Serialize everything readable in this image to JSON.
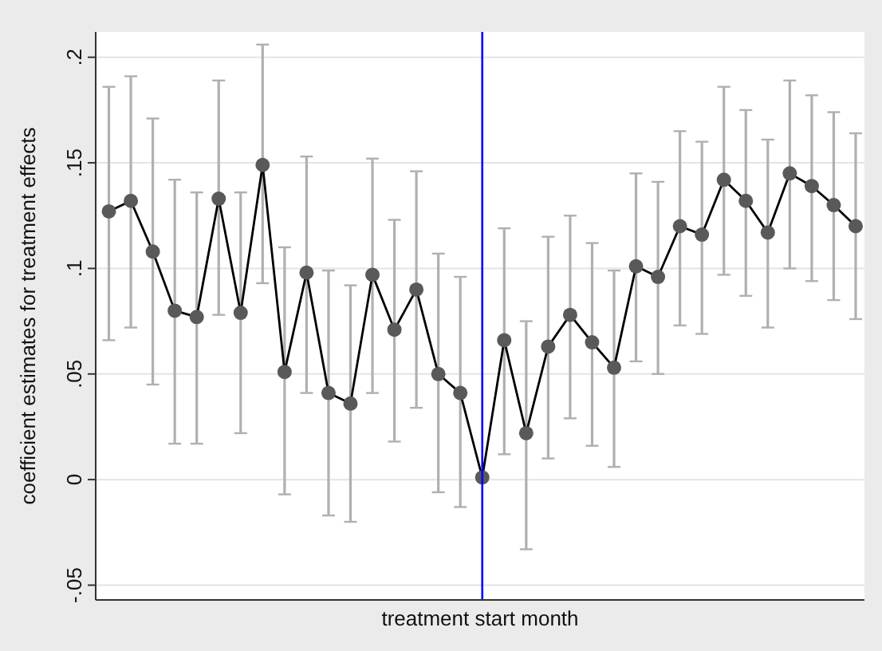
{
  "chart_data": {
    "type": "line",
    "xlabel": "treatment start month",
    "ylabel": "coefficient estimates for treatment effects",
    "categories": [
      null,
      null,
      null,
      null,
      null,
      null,
      null,
      null,
      null,
      null,
      null,
      null,
      null,
      null,
      null,
      null,
      null,
      null,
      null,
      null,
      null,
      null,
      null,
      null,
      null,
      null,
      null,
      null,
      null,
      null,
      null,
      null,
      null,
      null,
      null
    ],
    "tick_labels": "y",
    "ylim": [
      -0.057,
      0.212
    ],
    "yticks": [
      {
        "value": -0.05,
        "label": "-.05"
      },
      {
        "value": 0,
        "label": "0"
      },
      {
        "value": 0.05,
        "label": ".05"
      },
      {
        "value": 0.1,
        "label": ".1"
      },
      {
        "value": 0.15,
        "label": ".15"
      },
      {
        "value": 0.2,
        "label": ".2"
      }
    ],
    "grid": "y",
    "marker": "circle",
    "line_style": "solid",
    "series": [
      {
        "color": "#000000",
        "values": [
          0.127,
          0.132,
          0.108,
          0.08,
          0.077,
          0.133,
          0.079,
          0.149,
          0.051,
          0.098,
          0.041,
          0.036,
          0.097,
          0.071,
          0.09,
          0.05,
          0.041,
          0.001,
          0.066,
          0.022,
          0.063,
          0.078,
          0.065,
          0.053,
          0.101,
          0.096,
          0.12,
          0.116,
          0.142,
          0.132,
          0.117,
          0.145,
          0.139,
          0.13,
          0.12
        ],
        "errors": [
          [
            0.066,
            0.186
          ],
          [
            0.072,
            0.191
          ],
          [
            0.045,
            0.171
          ],
          [
            0.017,
            0.142
          ],
          [
            0.017,
            0.136
          ],
          [
            0.078,
            0.189
          ],
          [
            0.022,
            0.136
          ],
          [
            0.093,
            0.206
          ],
          [
            -0.007,
            0.11
          ],
          [
            0.041,
            0.153
          ],
          [
            -0.017,
            0.099
          ],
          [
            -0.02,
            0.092
          ],
          [
            0.041,
            0.152
          ],
          [
            0.018,
            0.123
          ],
          [
            0.034,
            0.146
          ],
          [
            -0.006,
            0.107
          ],
          [
            -0.013,
            0.096
          ],
          null,
          [
            0.012,
            0.119
          ],
          [
            -0.033,
            0.075
          ],
          [
            0.01,
            0.115
          ],
          [
            0.029,
            0.125
          ],
          [
            0.016,
            0.112
          ],
          [
            0.006,
            0.099
          ],
          [
            0.056,
            0.145
          ],
          [
            0.05,
            0.141
          ],
          [
            0.073,
            0.165
          ],
          [
            0.069,
            0.16
          ],
          [
            0.097,
            0.186
          ],
          [
            0.087,
            0.175
          ],
          [
            0.072,
            0.161
          ],
          [
            0.1,
            0.189
          ],
          [
            0.094,
            0.182
          ],
          [
            0.085,
            0.174
          ],
          [
            0.076,
            0.164
          ]
        ]
      }
    ]
  }
}
